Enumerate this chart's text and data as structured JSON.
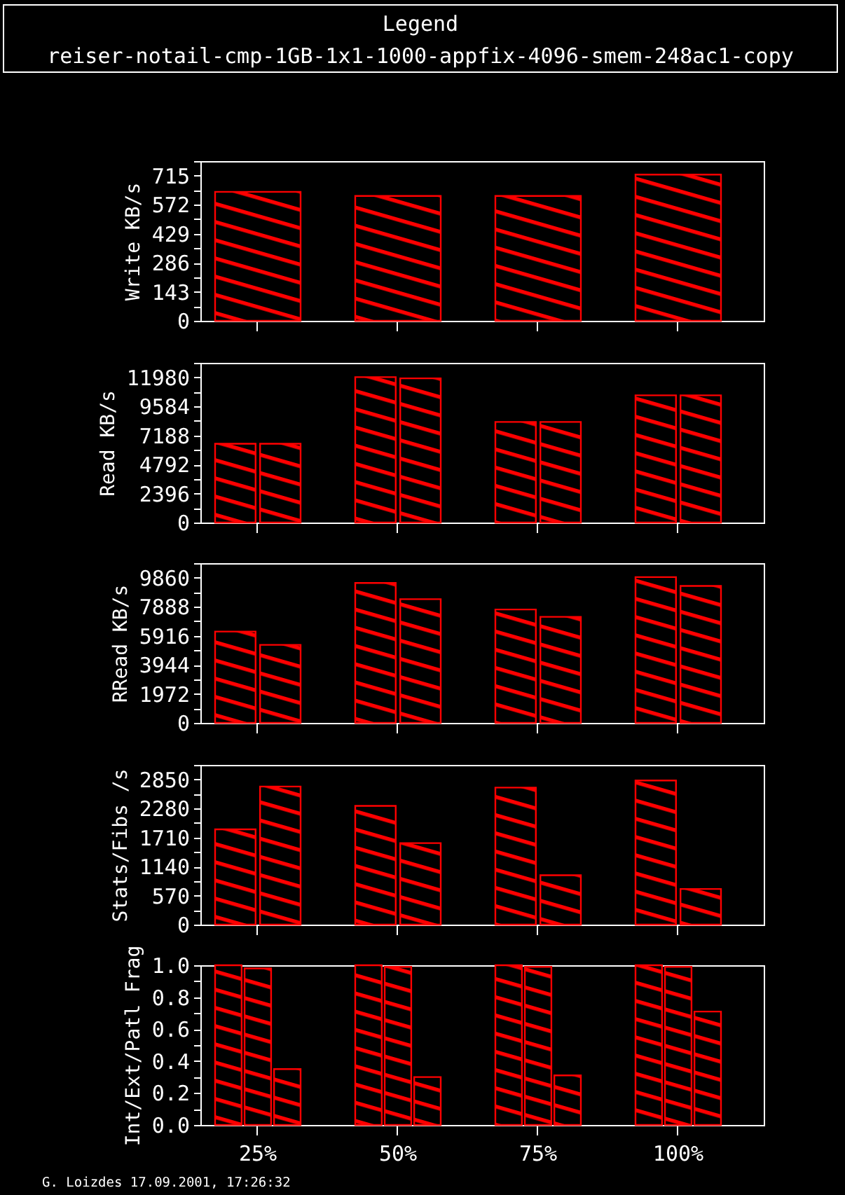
{
  "chart_data": [
    {
      "type": "other",
      "title": "Legend",
      "annotations": [
        "reiser-notail-cmp-1GB-1x1-1000-appfix-4096-smem-248ac1-copy"
      ]
    },
    {
      "type": "bar",
      "ylabel": "Write KB/s",
      "categories": [
        null,
        null,
        null,
        null
      ],
      "series": [
        {
          "color": "#ff0000",
          "values": [
            635,
            615,
            615,
            720
          ]
        }
      ],
      "ylim": [
        0,
        786.5
      ],
      "yticks": [
        0,
        {
          "value": 71.5,
          "label": null
        },
        143,
        {
          "value": 214.5,
          "label": null
        },
        286,
        {
          "value": 357.5,
          "label": null
        },
        429,
        {
          "value": 500.5,
          "label": null
        },
        572,
        {
          "value": 643.5,
          "label": null
        },
        715,
        {
          "value": 786.5,
          "label": null
        }
      ],
      "tick_labels": "y"
    },
    {
      "type": "bar",
      "ylabel": "Read KB/s",
      "categories": [
        null,
        null,
        null,
        null
      ],
      "series": [
        {
          "color": "#ff0000",
          "values": [
            6500,
            12000,
            8300,
            10500
          ]
        },
        {
          "color": "#ff0000",
          "values": [
            6500,
            11900,
            8300,
            10500
          ]
        }
      ],
      "ylim": [
        0,
        13178
      ],
      "yticks": [
        0,
        {
          "value": 1198,
          "label": null
        },
        2396,
        {
          "value": 3594,
          "label": null
        },
        4792,
        {
          "value": 5990,
          "label": null
        },
        7188,
        {
          "value": 8386,
          "label": null
        },
        9584,
        {
          "value": 10782,
          "label": null
        },
        11980,
        {
          "value": 13178,
          "label": null
        }
      ],
      "tick_labels": "y"
    },
    {
      "type": "bar",
      "ylabel": "RRead KB/s",
      "categories": [
        null,
        null,
        null,
        null
      ],
      "series": [
        {
          "color": "#ff0000",
          "values": [
            6200,
            9500,
            7700,
            9900
          ]
        },
        {
          "color": "#ff0000",
          "values": [
            5300,
            8400,
            7200,
            9300
          ]
        }
      ],
      "ylim": [
        0,
        10846
      ],
      "yticks": [
        0,
        {
          "value": 986,
          "label": null
        },
        1972,
        {
          "value": 2958,
          "label": null
        },
        3944,
        {
          "value": 4930,
          "label": null
        },
        5916,
        {
          "value": 6902,
          "label": null
        },
        7888,
        {
          "value": 8874,
          "label": null
        },
        9860,
        {
          "value": 10846,
          "label": null
        }
      ],
      "tick_labels": "y"
    },
    {
      "type": "bar",
      "ylabel": "Stats/Fibs /s",
      "categories": [
        null,
        null,
        null,
        null
      ],
      "series": [
        {
          "color": "#ff0000",
          "values": [
            1870,
            2330,
            2690,
            2830
          ]
        },
        {
          "color": "#ff0000",
          "values": [
            2710,
            1600,
            970,
            700
          ]
        }
      ],
      "ylim": [
        0,
        3135
      ],
      "yticks": [
        0,
        {
          "value": 285,
          "label": null
        },
        570,
        {
          "value": 855,
          "label": null
        },
        1140,
        {
          "value": 1425,
          "label": null
        },
        1710,
        {
          "value": 1995,
          "label": null
        },
        2280,
        {
          "value": 2565,
          "label": null
        },
        2850,
        {
          "value": 3135,
          "label": null
        }
      ],
      "tick_labels": "y"
    },
    {
      "type": "bar",
      "ylabel": "Int/Ext/Patl Frag",
      "categories": [
        "25%",
        "50%",
        "75%",
        "100%"
      ],
      "series": [
        {
          "color": "#ff0000",
          "values": [
            1.0,
            1.0,
            1.0,
            1.0
          ]
        },
        {
          "color": "#ff0000",
          "values": [
            0.98,
            0.99,
            0.99,
            0.99
          ]
        },
        {
          "color": "#ff0000",
          "values": [
            0.35,
            0.3,
            0.31,
            0.71
          ]
        }
      ],
      "ylim": [
        0,
        1
      ],
      "yticks": [
        {
          "value": 0,
          "label": "0.0"
        },
        {
          "value": 0.1,
          "label": null
        },
        0.2,
        {
          "value": 0.3,
          "label": null
        },
        0.4,
        {
          "value": 0.5,
          "label": null
        },
        0.6,
        {
          "value": 0.7,
          "label": null
        },
        0.8,
        {
          "value": 0.9,
          "label": null
        },
        {
          "value": 1,
          "label": "1.0"
        }
      ],
      "annotations": [
        "G. Loizdes 17.09.2001, 17:26:32"
      ]
    }
  ]
}
